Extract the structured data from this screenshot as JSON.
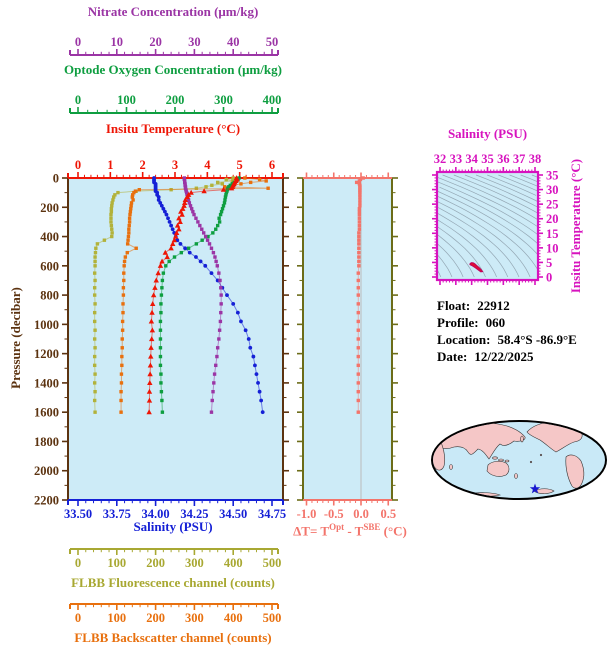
{
  "colors": {
    "plot_background": "#CDEBF7",
    "page_background": "#FFFFFF",
    "nitrate_purple": "#9B35A5",
    "oxygen_green": "#0E9E40",
    "temperature_red": "#EE1505",
    "pressure_brown": "#5C3310",
    "salinity_blue": "#1520D6",
    "delta_t_salmon": "#F3746B",
    "delta_t_side_olive": "#6C6C18",
    "fluorescence_olive": "#A8A832",
    "backscatter_orange": "#E8700E",
    "ts_magenta": "#D713BE",
    "contour_gray": "#8A9BA8",
    "zero_line_gray": "#BBBBBB"
  },
  "axes": {
    "nitrate": {
      "title": "Nitrate Concentration (μm/kg)",
      "color": "#9B35A5",
      "min": 0,
      "max": 50,
      "tick_values": [
        0,
        10,
        20,
        30,
        40,
        50
      ],
      "tick_labels": [
        "0",
        "10",
        "20",
        "30",
        "40",
        "50"
      ],
      "minor_step": 2
    },
    "oxygen": {
      "title": "Optode Oxygen Concentration (μm/kg)",
      "color": "#0E9E40",
      "min": 0,
      "max": 400,
      "tick_values": [
        0,
        100,
        200,
        300,
        400
      ],
      "tick_labels": [
        "0",
        "100",
        "200",
        "300",
        "400"
      ],
      "minor_step": 20
    },
    "temperature": {
      "title": "Insitu Temperature (°C)",
      "color": "#EE1505",
      "min": 0,
      "max": 6,
      "tick_values": [
        0,
        1,
        2,
        3,
        4,
        5,
        6
      ],
      "tick_labels": [
        "0",
        "1",
        "2",
        "3",
        "4",
        "5",
        "6"
      ],
      "minor_step": 0.2
    },
    "pressure": {
      "title": "Pressure (decibar)",
      "color": "#5C3310",
      "min": 0,
      "max": 2200,
      "tick_values": [
        0,
        200,
        400,
        600,
        800,
        1000,
        1200,
        1400,
        1600,
        1800,
        2000,
        2200
      ],
      "tick_labels": [
        "0",
        "200",
        "400",
        "600",
        "800",
        "1000",
        "1200",
        "1400",
        "1600",
        "1800",
        "2000",
        "2200"
      ],
      "minor_step": 100
    },
    "salinity": {
      "title": "Salinity (PSU)",
      "color": "#1520D6",
      "min": 33.5,
      "max": 34.75,
      "tick_values": [
        33.5,
        33.75,
        34.0,
        34.25,
        34.5,
        34.75
      ],
      "tick_labels": [
        "33.50",
        "33.75",
        "34.00",
        "34.25",
        "34.50",
        "34.75"
      ],
      "minor_step": 0.05
    },
    "delta_t": {
      "title_pre": "ΔT= T",
      "title_sup1": "Opt",
      "title_mid": " - T",
      "title_sup2": "SBE",
      "title_post": " (°C)",
      "color": "#F3746B",
      "side_color": "#6C6C18",
      "min": -1.0,
      "max": 0.5,
      "tick_values": [
        -1.0,
        -0.5,
        0.0,
        0.5
      ],
      "tick_labels": [
        "-1.0",
        "-0.5",
        "0.0",
        "0.5"
      ],
      "minor_step": 0.1
    },
    "fluorescence": {
      "title": "FLBB Fluorescence channel (counts)",
      "color": "#A8A832",
      "min": 0,
      "max": 500,
      "tick_values": [
        0,
        100,
        200,
        300,
        400,
        500
      ],
      "tick_labels": [
        "0",
        "100",
        "200",
        "300",
        "400",
        "500"
      ],
      "minor_step": 20
    },
    "backscatter": {
      "title": "FLBB Backscatter channel (counts)",
      "color": "#E8700E",
      "min": 0,
      "max": 500,
      "tick_values": [
        0,
        100,
        200,
        300,
        400,
        500
      ],
      "tick_labels": [
        "0",
        "100",
        "200",
        "300",
        "400",
        "500"
      ],
      "minor_step": 20
    },
    "ts_salinity": {
      "title": "Salinity (PSU)",
      "color": "#D713BE",
      "min": 32,
      "max": 38,
      "tick_values": [
        32,
        33,
        34,
        35,
        36,
        37,
        38
      ],
      "tick_labels": [
        "32",
        "33",
        "34",
        "35",
        "36",
        "37",
        "38"
      ],
      "minor_step": 0.2
    },
    "ts_temperature": {
      "title": "Insitu Temperature (°C)",
      "color": "#D713BE",
      "min": 0,
      "max": 35,
      "tick_values": [
        0,
        5,
        10,
        15,
        20,
        25,
        30,
        35
      ],
      "tick_labels": [
        "0",
        "5",
        "10",
        "15",
        "20",
        "25",
        "30",
        "35"
      ],
      "minor_step": 1
    }
  },
  "chart_data": [
    {
      "type": "line",
      "name": "main-profile-plot",
      "title": "Float profiles vs pressure",
      "background": "#CDEBF7",
      "y_axis": {
        "label": "Pressure (decibar)",
        "range": [
          0,
          2200
        ],
        "inverted": true,
        "profile_max_depth": 1600
      },
      "pressures": [
        0,
        10,
        20,
        30,
        40,
        50,
        60,
        70,
        80,
        90,
        100,
        115,
        130,
        150,
        170,
        190,
        210,
        230,
        250,
        275,
        300,
        325,
        350,
        375,
        400,
        425,
        450,
        480,
        510,
        540,
        570,
        600,
        650,
        700,
        750,
        800,
        860,
        920,
        980,
        1040,
        1100,
        1160,
        1220,
        1280,
        1340,
        1400,
        1460,
        1520,
        1600
      ],
      "series": [
        {
          "name": "FLBB Fluorescence channel",
          "units": "counts",
          "color": "#B2B23A",
          "marker": "square",
          "scale": [
            0,
            500
          ],
          "values": [
            400,
            382,
            398,
            360,
            372,
            345,
            330,
            305,
            240,
            150,
            103,
            95,
            92,
            90,
            88,
            87,
            86,
            86,
            85,
            85,
            85,
            86,
            87,
            88,
            87,
            68,
            50,
            46,
            45,
            44,
            44,
            44,
            43,
            44,
            43,
            43,
            44,
            43,
            43,
            44,
            43,
            44,
            43,
            43,
            44,
            43,
            44,
            43,
            44
          ]
        },
        {
          "name": "FLBB Backscatter channel",
          "units": "counts",
          "color": "#E8700E",
          "marker": "square",
          "scale": [
            0,
            500
          ],
          "values": [
            430,
            468,
            485,
            445,
            420,
            400,
            378,
            490,
            158,
            148,
            144,
            141,
            140,
            142,
            138,
            137,
            136,
            135,
            134,
            133,
            133,
            132,
            131,
            131,
            130,
            129,
            128,
            150,
            127,
            122,
            120,
            119,
            118,
            118,
            117,
            117,
            116,
            116,
            115,
            115,
            114,
            114,
            113,
            113,
            112,
            112,
            111,
            111,
            111
          ]
        },
        {
          "name": "Optode Oxygen Concentration",
          "units": "μm/kg",
          "color": "#0E9E40",
          "marker": "square",
          "scale": [
            0,
            400
          ],
          "values": [
            332,
            330,
            327,
            322,
            318,
            314,
            311,
            309,
            308,
            307,
            306,
            305,
            304,
            303,
            302,
            300,
            298,
            296,
            294,
            291,
            292,
            288,
            284,
            278,
            268,
            256,
            244,
            228,
            213,
            199,
            188,
            181,
            176,
            174,
            173,
            172,
            171,
            171,
            170,
            170,
            170,
            170,
            170,
            170,
            171,
            171,
            172,
            173,
            174
          ]
        },
        {
          "name": "Salinity",
          "units": "PSU",
          "color": "#1520D6",
          "marker": "circle",
          "scale": [
            33.5,
            34.75
          ],
          "values": [
            33.99,
            33.99,
            33.99,
            33.99,
            34.0,
            34.0,
            34.0,
            34.0,
            34.0,
            34.0,
            34.01,
            34.01,
            34.02,
            34.02,
            34.03,
            34.04,
            34.05,
            34.06,
            34.07,
            34.08,
            34.09,
            34.1,
            34.11,
            34.12,
            34.13,
            34.14,
            34.16,
            34.19,
            34.22,
            34.26,
            34.29,
            34.32,
            34.36,
            34.4,
            34.43,
            34.46,
            34.5,
            34.53,
            34.55,
            34.58,
            34.6,
            34.61,
            34.63,
            34.64,
            34.65,
            34.66,
            34.67,
            34.68,
            34.69
          ]
        },
        {
          "name": "Nitrate Concentration",
          "units": "μm/kg",
          "color": "#9B35A5",
          "marker": "square",
          "scale": [
            0,
            50
          ],
          "values": [
            27.4,
            27.4,
            27.5,
            27.5,
            27.6,
            27.6,
            27.7,
            27.7,
            27.8,
            27.9,
            28.0,
            28.1,
            28.3,
            28.5,
            28.7,
            29.0,
            29.3,
            29.6,
            29.9,
            30.4,
            30.9,
            31.4,
            31.9,
            32.4,
            32.9,
            33.4,
            33.9,
            34.4,
            34.9,
            35.3,
            35.6,
            35.9,
            36.3,
            36.6,
            36.8,
            36.9,
            36.9,
            36.8,
            36.7,
            36.5,
            36.3,
            36.0,
            35.8,
            35.5,
            35.2,
            35.0,
            34.8,
            34.6,
            34.4
          ]
        },
        {
          "name": "Insitu Temperature",
          "units": "°C",
          "color": "#EE1505",
          "marker": "triangle",
          "scale": [
            0,
            6
          ],
          "values": [
            4.9,
            4.92,
            4.88,
            4.85,
            4.82,
            4.8,
            4.78,
            4.75,
            4.5,
            3.9,
            3.5,
            3.42,
            3.38,
            3.32,
            3.3,
            3.28,
            3.24,
            3.18,
            3.22,
            3.12,
            3.16,
            3.08,
            3.12,
            3.05,
            3.02,
            2.98,
            2.93,
            2.88,
            2.7,
            2.76,
            2.6,
            2.55,
            2.48,
            2.42,
            2.38,
            2.34,
            2.31,
            2.29,
            2.27,
            2.3,
            2.28,
            2.26,
            2.25,
            2.24,
            2.23,
            2.22,
            2.21,
            2.21,
            2.2
          ]
        }
      ]
    },
    {
      "type": "scatter",
      "name": "delta-t-plot",
      "title": "Optode minus SBE temperature difference",
      "background": "#CDEBF7",
      "series": [
        {
          "name": "ΔT = TOpt - TSBE",
          "units": "°C",
          "color": "#F3746B",
          "marker": "square",
          "scale": [
            -1.0,
            0.5
          ],
          "values": [
            0.04,
            -0.01,
            -0.03,
            -0.08,
            -0.03,
            -0.02,
            -0.02,
            -0.02,
            -0.02,
            -0.02,
            -0.02,
            -0.02,
            -0.02,
            -0.02,
            -0.02,
            -0.02,
            -0.03,
            -0.03,
            -0.03,
            -0.03,
            -0.03,
            -0.03,
            -0.03,
            -0.04,
            -0.04,
            -0.04,
            -0.04,
            -0.04,
            -0.04,
            -0.04,
            -0.04,
            -0.04,
            -0.05,
            -0.05,
            -0.05,
            -0.05,
            -0.05,
            -0.05,
            -0.05,
            -0.05,
            -0.05,
            -0.05,
            -0.05,
            -0.05,
            -0.05,
            -0.05,
            -0.05,
            -0.05,
            -0.05
          ]
        }
      ]
    },
    {
      "type": "scatter",
      "name": "ts-diagram",
      "title": "Temperature-Salinity diagram with density isolines",
      "background": "#CDEBF7",
      "x_axis": {
        "label": "Salinity (PSU)",
        "range": [
          32,
          38
        ]
      },
      "y_axis": {
        "label": "Insitu Temperature (°C)",
        "range": [
          0,
          35
        ]
      },
      "contour_color": "#8A9BA8",
      "blob_color": "#E0102E",
      "blob_points_S_T": [
        [
          34.0,
          4.95
        ],
        [
          34.12,
          4.8
        ],
        [
          34.22,
          4.45
        ],
        [
          34.32,
          3.95
        ],
        [
          34.46,
          3.25
        ],
        [
          34.6,
          2.5
        ],
        [
          34.69,
          1.85
        ],
        [
          34.58,
          1.75
        ],
        [
          34.44,
          2.35
        ],
        [
          34.28,
          3.0
        ],
        [
          34.13,
          3.55
        ],
        [
          34.0,
          3.95
        ],
        [
          33.92,
          4.15
        ],
        [
          33.88,
          4.4
        ],
        [
          33.92,
          4.7
        ]
      ]
    }
  ],
  "float_info": {
    "float_label": "Float:",
    "float_value": "22912",
    "profile_label": "Profile:",
    "profile_value": "060",
    "location_label": "Location:",
    "location_value": "58.4°S -86.9°E",
    "date_label": "Date:",
    "date_value": "12/22/2025"
  },
  "map": {
    "ocean_color": "#C9E9F7",
    "land_color": "#F5C7C7",
    "outline_color": "#000000",
    "star_color": "#1818D0",
    "star_meaning": "float location"
  }
}
